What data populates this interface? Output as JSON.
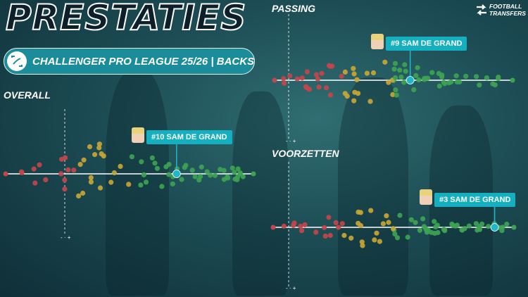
{
  "header": {
    "title": "PRESTATIES",
    "league": "CHALLENGER PRO LEAGUE 25/26 | BACKS"
  },
  "brand": {
    "logo_text_line1": "FOOTBALL",
    "logo_text_line2": "TRANSFERS"
  },
  "scale_markers": {
    "left": "-",
    "right": "+"
  },
  "colors": {
    "red": "#c4454a",
    "yellow": "#c9a534",
    "green": "#3da353",
    "highlight": "#1fb7c9"
  },
  "panels": [
    {
      "id": "overall",
      "label": "OVERALL",
      "player_callout": "#10 SAM DE GRAND",
      "player_percentile": 0.69
    },
    {
      "id": "passing",
      "label": "PASSING",
      "player_callout": "#9 SAM DE GRAND",
      "player_percentile": 0.57
    },
    {
      "id": "voorzetten",
      "label": "VOORZETTEN",
      "player_callout": "#3 SAM DE GRAND",
      "player_percentile": 0.92
    }
  ]
}
